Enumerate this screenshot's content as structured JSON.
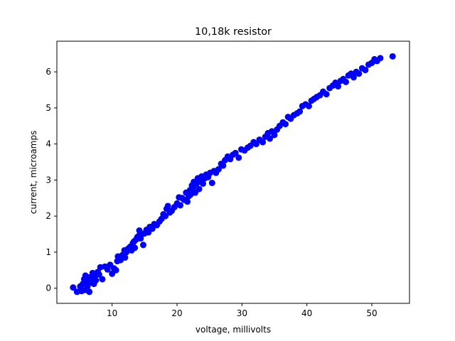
{
  "chart_data": {
    "type": "scatter",
    "title": "10,18k resistor",
    "xlabel": "voltage, millivolts",
    "ylabel": "current, microamps",
    "xlim": [
      1.5,
      55.8
    ],
    "ylim": [
      -0.42,
      6.85
    ],
    "x_ticks": [
      10,
      20,
      30,
      40,
      50
    ],
    "y_ticks": [
      0,
      1,
      2,
      3,
      4,
      5,
      6
    ],
    "grid": false,
    "legend": "none",
    "marker_color": "#0000ff",
    "series": [
      {
        "points": [
          [
            4.0,
            0.02
          ],
          [
            4.6,
            -0.1
          ],
          [
            5.1,
            0.05
          ],
          [
            5.3,
            -0.08
          ],
          [
            5.5,
            0.12
          ],
          [
            5.7,
            0.25
          ],
          [
            5.8,
            -0.05
          ],
          [
            5.9,
            0.35
          ],
          [
            6.1,
            0.2
          ],
          [
            6.2,
            0.05
          ],
          [
            6.4,
            0.3
          ],
          [
            6.5,
            -0.1
          ],
          [
            6.6,
            0.15
          ],
          [
            6.8,
            0.28
          ],
          [
            7.0,
            0.42
          ],
          [
            7.2,
            0.12
          ],
          [
            7.3,
            0.32
          ],
          [
            7.5,
            0.22
          ],
          [
            7.8,
            0.45
          ],
          [
            8.0,
            0.38
          ],
          [
            8.2,
            0.58
          ],
          [
            8.5,
            0.25
          ],
          [
            8.9,
            0.6
          ],
          [
            9.3,
            0.52
          ],
          [
            9.7,
            0.65
          ],
          [
            10.0,
            0.4
          ],
          [
            10.3,
            0.55
          ],
          [
            10.6,
            0.5
          ],
          [
            10.8,
            0.75
          ],
          [
            10.9,
            0.88
          ],
          [
            11.3,
            0.78
          ],
          [
            11.6,
            0.92
          ],
          [
            11.9,
            1.05
          ],
          [
            12.0,
            0.85
          ],
          [
            12.2,
            1.0
          ],
          [
            12.5,
            1.1
          ],
          [
            12.8,
            1.15
          ],
          [
            13.0,
            1.05
          ],
          [
            13.2,
            1.25
          ],
          [
            13.4,
            1.3
          ],
          [
            13.5,
            1.12
          ],
          [
            13.7,
            1.35
          ],
          [
            13.9,
            1.42
          ],
          [
            14.1,
            1.45
          ],
          [
            14.2,
            1.6
          ],
          [
            14.4,
            1.38
          ],
          [
            14.6,
            1.5
          ],
          [
            14.8,
            1.2
          ],
          [
            15.0,
            1.52
          ],
          [
            15.3,
            1.62
          ],
          [
            15.6,
            1.55
          ],
          [
            15.8,
            1.7
          ],
          [
            16.2,
            1.65
          ],
          [
            16.5,
            1.78
          ],
          [
            16.9,
            1.75
          ],
          [
            17.3,
            1.85
          ],
          [
            17.6,
            1.92
          ],
          [
            17.9,
            2.05
          ],
          [
            18.2,
            2.0
          ],
          [
            18.4,
            2.2
          ],
          [
            18.6,
            2.28
          ],
          [
            18.9,
            2.1
          ],
          [
            19.2,
            2.15
          ],
          [
            19.6,
            2.25
          ],
          [
            20.0,
            2.35
          ],
          [
            20.3,
            2.52
          ],
          [
            20.5,
            2.3
          ],
          [
            20.8,
            2.5
          ],
          [
            21.1,
            2.45
          ],
          [
            21.4,
            2.65
          ],
          [
            21.6,
            2.4
          ],
          [
            21.8,
            2.55
          ],
          [
            22.0,
            2.72
          ],
          [
            22.1,
            2.6
          ],
          [
            22.3,
            2.85
          ],
          [
            22.5,
            2.8
          ],
          [
            22.6,
            2.95
          ],
          [
            22.8,
            2.65
          ],
          [
            23.0,
            2.9
          ],
          [
            23.2,
            3.05
          ],
          [
            23.4,
            2.75
          ],
          [
            23.6,
            2.95
          ],
          [
            23.8,
            3.1
          ],
          [
            24.0,
            2.9
          ],
          [
            24.3,
            3.05
          ],
          [
            24.5,
            3.15
          ],
          [
            24.8,
            3.08
          ],
          [
            25.1,
            3.2
          ],
          [
            25.4,
            2.92
          ],
          [
            25.7,
            3.25
          ],
          [
            26.0,
            3.2
          ],
          [
            26.4,
            3.3
          ],
          [
            26.8,
            3.45
          ],
          [
            27.1,
            3.4
          ],
          [
            27.4,
            3.55
          ],
          [
            27.8,
            3.65
          ],
          [
            28.2,
            3.58
          ],
          [
            28.6,
            3.7
          ],
          [
            29.0,
            3.75
          ],
          [
            29.5,
            3.62
          ],
          [
            29.9,
            3.85
          ],
          [
            30.4,
            3.82
          ],
          [
            30.9,
            3.9
          ],
          [
            31.3,
            3.95
          ],
          [
            31.8,
            4.05
          ],
          [
            32.2,
            4.0
          ],
          [
            32.7,
            4.12
          ],
          [
            33.2,
            4.05
          ],
          [
            33.6,
            4.2
          ],
          [
            34.0,
            4.3
          ],
          [
            34.3,
            4.15
          ],
          [
            34.6,
            4.35
          ],
          [
            35.0,
            4.25
          ],
          [
            35.4,
            4.4
          ],
          [
            35.8,
            4.5
          ],
          [
            36.3,
            4.6
          ],
          [
            36.7,
            4.55
          ],
          [
            37.1,
            4.75
          ],
          [
            37.5,
            4.7
          ],
          [
            38.0,
            4.8
          ],
          [
            38.5,
            4.85
          ],
          [
            38.9,
            4.9
          ],
          [
            39.3,
            5.05
          ],
          [
            39.8,
            5.1
          ],
          [
            40.3,
            5.05
          ],
          [
            40.7,
            5.2
          ],
          [
            41.1,
            5.25
          ],
          [
            41.5,
            5.3
          ],
          [
            42.0,
            5.35
          ],
          [
            42.5,
            5.45
          ],
          [
            43.0,
            5.38
          ],
          [
            43.5,
            5.55
          ],
          [
            44.0,
            5.62
          ],
          [
            44.4,
            5.7
          ],
          [
            44.8,
            5.6
          ],
          [
            45.2,
            5.75
          ],
          [
            45.6,
            5.8
          ],
          [
            46.0,
            5.72
          ],
          [
            46.4,
            5.9
          ],
          [
            46.8,
            5.95
          ],
          [
            47.2,
            5.85
          ],
          [
            47.6,
            6.0
          ],
          [
            48.0,
            5.95
          ],
          [
            48.5,
            6.1
          ],
          [
            49.0,
            6.05
          ],
          [
            49.5,
            6.2
          ],
          [
            50.0,
            6.25
          ],
          [
            50.4,
            6.35
          ],
          [
            50.8,
            6.3
          ],
          [
            51.3,
            6.38
          ],
          [
            53.2,
            6.43
          ]
        ]
      }
    ]
  }
}
